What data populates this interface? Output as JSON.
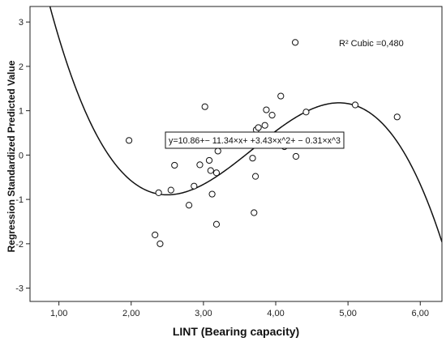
{
  "chart_data": {
    "type": "scatter",
    "xlabel": "LINT  (Bearing capacity)",
    "ylabel": "Regression Standardized Predicted Value",
    "xlim": [
      0.6,
      6.3
    ],
    "ylim": [
      -3.3,
      3.35
    ],
    "x_ticks": [
      1,
      2,
      3,
      4,
      5,
      6
    ],
    "x_tick_labels": [
      "1,00",
      "2,00",
      "3,00",
      "4,00",
      "5,00",
      "6,00"
    ],
    "y_ticks": [
      -3,
      -2,
      -1,
      0,
      1,
      2,
      3
    ],
    "y_tick_labels": [
      "-3",
      "-2",
      "-1",
      "0",
      "1",
      "2",
      "3"
    ],
    "grid": false,
    "r2_label": "R² Cubic =0,480",
    "equation_label": "y=10.86+− 11.34×x+ +3.43×x^2+ − 0.31×x^3",
    "fit": {
      "type": "cubic",
      "coefficients": [
        10.86,
        -11.34,
        3.43,
        -0.31
      ]
    },
    "points": [
      {
        "x": 1.97,
        "y": 0.33
      },
      {
        "x": 2.33,
        "y": -1.8
      },
      {
        "x": 2.4,
        "y": -2.0
      },
      {
        "x": 2.38,
        "y": -0.85
      },
      {
        "x": 2.55,
        "y": -0.79
      },
      {
        "x": 2.6,
        "y": -0.23
      },
      {
        "x": 2.8,
        "y": -1.13
      },
      {
        "x": 2.87,
        "y": -0.7
      },
      {
        "x": 2.95,
        "y": -0.22
      },
      {
        "x": 3.02,
        "y": 1.09
      },
      {
        "x": 3.08,
        "y": -0.12
      },
      {
        "x": 3.1,
        "y": -0.35
      },
      {
        "x": 3.12,
        "y": -0.88
      },
      {
        "x": 3.18,
        "y": -0.4
      },
      {
        "x": 3.18,
        "y": -1.56
      },
      {
        "x": 3.2,
        "y": 0.09
      },
      {
        "x": 3.55,
        "y": 0.3
      },
      {
        "x": 3.65,
        "y": 0.32
      },
      {
        "x": 3.68,
        "y": -0.07
      },
      {
        "x": 3.7,
        "y": -1.3
      },
      {
        "x": 3.72,
        "y": -0.48
      },
      {
        "x": 3.73,
        "y": 0.57
      },
      {
        "x": 3.76,
        "y": 0.62
      },
      {
        "x": 3.8,
        "y": 0.38
      },
      {
        "x": 3.85,
        "y": 0.67
      },
      {
        "x": 3.87,
        "y": 1.02
      },
      {
        "x": 3.95,
        "y": 0.9
      },
      {
        "x": 4.07,
        "y": 1.33
      },
      {
        "x": 4.12,
        "y": 0.19
      },
      {
        "x": 4.27,
        "y": 2.54
      },
      {
        "x": 4.28,
        "y": -0.03
      },
      {
        "x": 4.42,
        "y": 0.97
      },
      {
        "x": 5.1,
        "y": 1.13
      },
      {
        "x": 5.68,
        "y": 0.86
      }
    ]
  }
}
